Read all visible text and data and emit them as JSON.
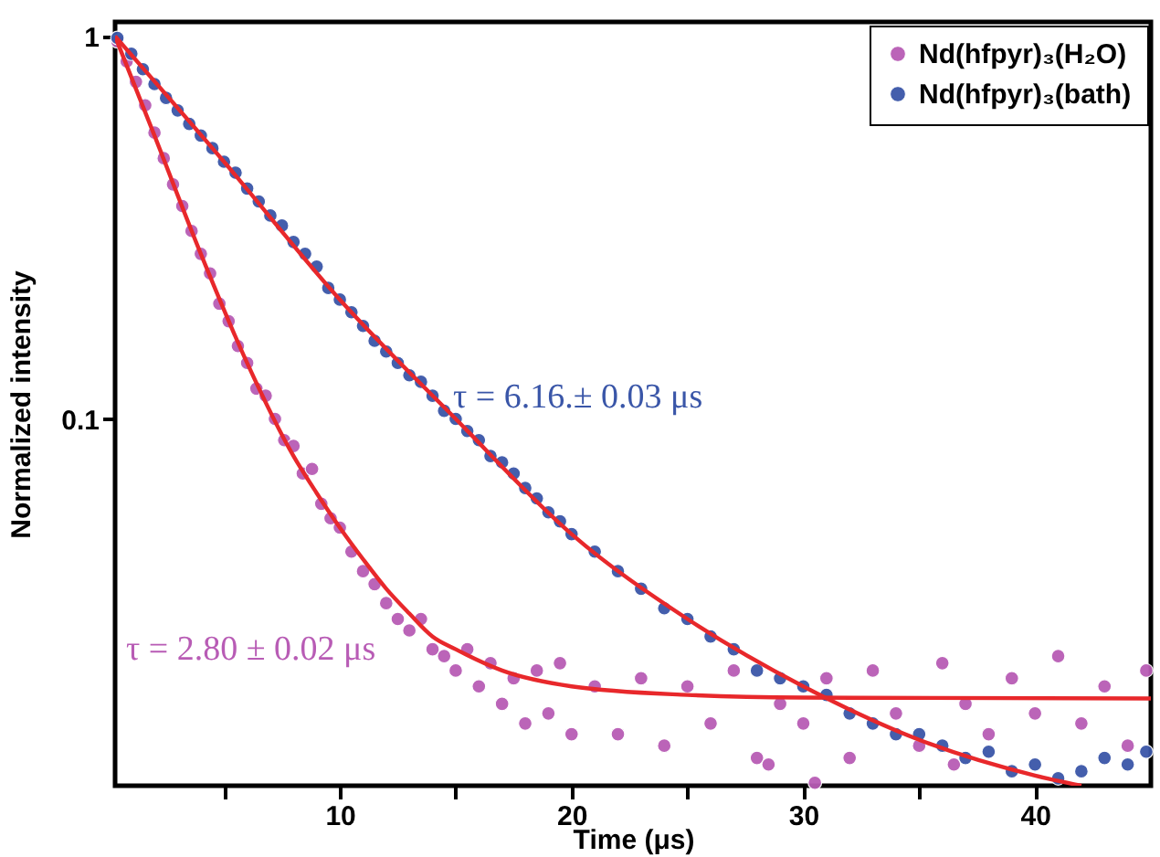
{
  "chart_data": {
    "type": "scatter",
    "xlabel": "Time (μs)",
    "ylabel": "Normalized intensity",
    "log": "y",
    "grid": false,
    "legend": "top right",
    "marker": "circle",
    "xlim": [
      0.3,
      45
    ],
    "xticks": [
      {
        "value": 5,
        "label": null
      },
      10,
      {
        "value": 15,
        "label": null
      },
      20,
      {
        "value": 25,
        "label": null
      },
      30,
      {
        "value": 35,
        "label": null
      },
      40
    ],
    "ylim": [
      0.011,
      1.09
    ],
    "yticks": [
      0.1,
      1
    ],
    "series": [
      {
        "name": "Nd(hfpyr)₃(H₂O)",
        "color": "#b85cb5",
        "x": [
          0.4,
          0.8,
          1.2,
          1.6,
          2.0,
          2.4,
          2.8,
          3.2,
          3.6,
          4.0,
          4.4,
          4.8,
          5.2,
          5.6,
          6.0,
          6.4,
          6.8,
          7.2,
          7.6,
          8.0,
          8.4,
          8.8,
          9.2,
          9.6,
          10.0,
          10.5,
          11,
          11.5,
          12,
          12.5,
          13,
          13.5,
          14,
          14.5,
          15,
          15.5,
          16,
          16.5,
          17,
          17.5,
          18,
          18.5,
          19,
          19.5,
          20,
          21,
          22,
          23,
          24,
          25,
          26,
          27,
          28,
          28.5,
          29,
          30,
          30.5,
          31,
          32,
          33,
          34,
          35,
          36,
          36.5,
          37,
          38,
          39,
          40,
          41,
          42,
          43,
          44,
          44.8
        ],
        "values": [
          0.97,
          0.86,
          0.76,
          0.66,
          0.56,
          0.48,
          0.41,
          0.36,
          0.31,
          0.27,
          0.24,
          0.2,
          0.18,
          0.155,
          0.14,
          0.12,
          0.115,
          0.1,
          0.088,
          0.085,
          0.072,
          0.074,
          0.06,
          0.055,
          0.052,
          0.045,
          0.04,
          0.037,
          0.033,
          0.03,
          0.028,
          0.03,
          0.025,
          0.024,
          0.022,
          0.025,
          0.02,
          0.023,
          0.018,
          0.021,
          0.016,
          0.022,
          0.017,
          0.023,
          0.015,
          0.02,
          0.015,
          0.021,
          0.014,
          0.02,
          0.016,
          0.022,
          0.013,
          0.0125,
          0.018,
          0.016,
          0.0112,
          0.021,
          0.013,
          0.022,
          0.017,
          0.014,
          0.023,
          0.0125,
          0.018,
          0.015,
          0.021,
          0.017,
          0.024,
          0.016,
          0.02,
          0.014,
          0.022
        ]
      },
      {
        "name": "Nd(hfpyr)₃(bath)",
        "color": "#3a56a8",
        "x": [
          0.4,
          1,
          1.5,
          2,
          2.5,
          3,
          3.5,
          4,
          4.5,
          5,
          5.5,
          6,
          6.5,
          7,
          7.5,
          8,
          8.5,
          9,
          9.5,
          10,
          10.5,
          11,
          11.5,
          12,
          12.5,
          13,
          13.5,
          14,
          14.5,
          15,
          15.5,
          16,
          16.5,
          17,
          17.5,
          18,
          18.5,
          19,
          19.5,
          20,
          21,
          22,
          23,
          24,
          25,
          26,
          27,
          28,
          29,
          30,
          31,
          32,
          33,
          34,
          35,
          36,
          37,
          38,
          39,
          40,
          41,
          42,
          43,
          44,
          44.8
        ],
        "values": [
          0.99,
          0.9,
          0.82,
          0.75,
          0.69,
          0.64,
          0.59,
          0.55,
          0.51,
          0.47,
          0.44,
          0.4,
          0.37,
          0.34,
          0.32,
          0.29,
          0.27,
          0.25,
          0.22,
          0.205,
          0.19,
          0.175,
          0.16,
          0.15,
          0.14,
          0.13,
          0.125,
          0.115,
          0.105,
          0.1,
          0.093,
          0.088,
          0.08,
          0.077,
          0.072,
          0.066,
          0.062,
          0.057,
          0.054,
          0.05,
          0.045,
          0.04,
          0.036,
          0.032,
          0.03,
          0.027,
          0.025,
          0.022,
          0.021,
          0.02,
          0.019,
          0.017,
          0.016,
          0.015,
          0.015,
          0.014,
          0.013,
          0.0135,
          0.012,
          0.0125,
          0.0115,
          0.012,
          0.013,
          0.0125,
          0.0135
        ]
      },
      {
        "type": "line",
        "marker": "none",
        "color": "#e8282b",
        "x": [
          0.3,
          2,
          4,
          6,
          8,
          9,
          10,
          11,
          12,
          13,
          14,
          15,
          17,
          20,
          25,
          30,
          45
        ],
        "values": [
          1,
          0.55,
          0.27,
          0.14,
          0.08,
          0.064,
          0.052,
          0.043,
          0.036,
          0.031,
          0.027,
          0.025,
          0.022,
          0.02,
          0.019,
          0.0187,
          0.0186
        ]
      },
      {
        "type": "line",
        "marker": "none",
        "color": "#e8282b",
        "x": [
          0.3,
          5,
          10,
          15,
          20,
          25,
          30,
          35,
          40,
          42
        ],
        "values": [
          1,
          0.47,
          0.205,
          0.1,
          0.05,
          0.03,
          0.02,
          0.0145,
          0.0117,
          0.011
        ]
      }
    ],
    "annotations": [
      "τ = 2.80 ± 0.02 μs",
      "τ = 6.16.± 0.03 μs"
    ]
  }
}
